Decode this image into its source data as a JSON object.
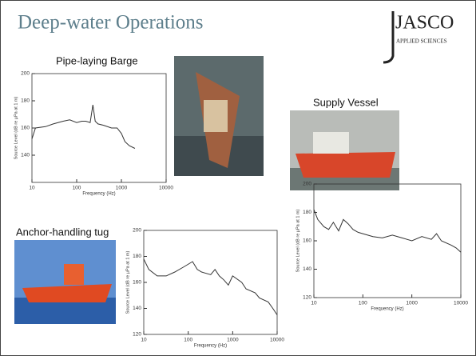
{
  "slide": {
    "title": "Deep-water Operations",
    "logo": "JASCO",
    "logo_sub": "APPLIED SCIENCES"
  },
  "chart_data": [
    {
      "type": "line",
      "title": "Pipe-laying Barge",
      "xlabel": "Frequency (Hz)",
      "ylabel": "Source Level (dB re µPa at 1 m)",
      "log_x": true,
      "xlim": [
        10,
        10000
      ],
      "xticks": [
        10,
        100,
        1000,
        10000
      ],
      "ylim": [
        120,
        200
      ],
      "yticks": [
        140,
        160,
        180,
        200
      ],
      "color": "#333333",
      "x": [
        10,
        12,
        20,
        30,
        50,
        70,
        100,
        130,
        160,
        200,
        230,
        260,
        300,
        400,
        600,
        800,
        1000,
        1200,
        1500,
        2000
      ],
      "values": [
        152,
        160,
        161,
        163,
        165,
        166,
        164,
        165,
        165,
        164,
        177,
        165,
        163,
        162,
        160,
        160,
        156,
        150,
        147,
        145
      ]
    },
    {
      "type": "line",
      "title": "Supply Vessel",
      "xlabel": "Frequency (Hz)",
      "ylabel": "Source Level (dB re µPa at 1 m)",
      "log_x": true,
      "xlim": [
        10,
        10000
      ],
      "xticks": [
        10,
        100,
        1000,
        10000
      ],
      "ylim": [
        120,
        200
      ],
      "yticks": [
        120,
        140,
        160,
        180,
        200
      ],
      "color": "#333333",
      "x": [
        10,
        12,
        16,
        20,
        25,
        32,
        40,
        50,
        63,
        80,
        100,
        160,
        250,
        400,
        630,
        1000,
        1600,
        2500,
        3200,
        4000,
        6300,
        8000,
        10000
      ],
      "values": [
        182,
        175,
        170,
        168,
        173,
        167,
        175,
        172,
        168,
        166,
        165,
        163,
        162,
        164,
        162,
        160,
        163,
        161,
        165,
        160,
        157,
        155,
        152
      ]
    },
    {
      "type": "line",
      "title": "Anchor-handling tug",
      "xlabel": "Frequency (Hz)",
      "ylabel": "Source Level (dB re µPa at 1 m)",
      "log_x": true,
      "xlim": [
        10,
        10000
      ],
      "xticks": [
        10,
        100,
        1000,
        10000
      ],
      "ylim": [
        120,
        200
      ],
      "yticks": [
        120,
        140,
        160,
        180,
        200
      ],
      "color": "#333333",
      "x": [
        10,
        13,
        20,
        32,
        50,
        80,
        125,
        160,
        200,
        320,
        400,
        500,
        630,
        800,
        1000,
        1600,
        2000,
        3200,
        4000,
        6300,
        8000,
        10000
      ],
      "values": [
        178,
        170,
        165,
        165,
        168,
        172,
        176,
        170,
        168,
        166,
        170,
        165,
        162,
        158,
        165,
        160,
        155,
        152,
        148,
        145,
        140,
        135
      ]
    }
  ]
}
